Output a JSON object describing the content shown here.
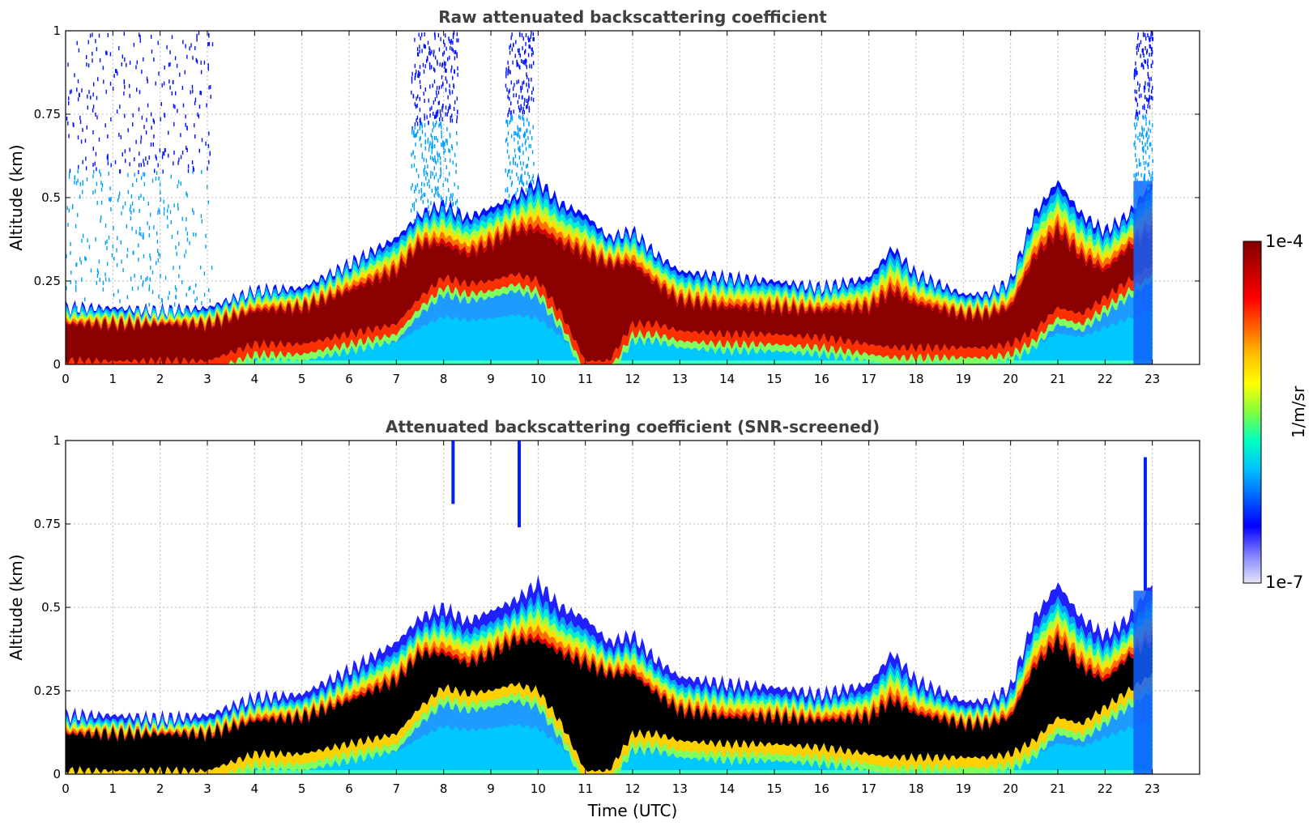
{
  "chart_data": [
    {
      "type": "heatmap",
      "title": "Raw attenuated backscattering coefficient",
      "xlabel": "",
      "ylabel": "Altitude (km)",
      "xlim": [
        0,
        24
      ],
      "ylim": [
        0,
        1
      ],
      "xticks": [
        "0",
        "1",
        "2",
        "3",
        "4",
        "5",
        "6",
        "7",
        "8",
        "9",
        "10",
        "11",
        "12",
        "13",
        "14",
        "15",
        "16",
        "17",
        "18",
        "19",
        "20",
        "21",
        "22",
        "23"
      ],
      "yticks": [
        "0",
        "0.25",
        "0.5",
        "0.75",
        "1"
      ],
      "grid": true,
      "data_end_hour": 23,
      "layer": {
        "description_hours": [
          0,
          1,
          2,
          3,
          4,
          5,
          6,
          7,
          7.5,
          8,
          8.5,
          9,
          9.5,
          10,
          10.5,
          11,
          11.5,
          12,
          12.5,
          13,
          14,
          15,
          16,
          17,
          17.5,
          18,
          19,
          19.5,
          20,
          20.5,
          21,
          21.5,
          22,
          22.5,
          23
        ],
        "top_km": [
          0.17,
          0.17,
          0.16,
          0.17,
          0.22,
          0.23,
          0.3,
          0.38,
          0.45,
          0.48,
          0.44,
          0.47,
          0.5,
          0.55,
          0.48,
          0.45,
          0.38,
          0.4,
          0.33,
          0.28,
          0.26,
          0.25,
          0.23,
          0.26,
          0.35,
          0.27,
          0.21,
          0.21,
          0.25,
          0.45,
          0.55,
          0.45,
          0.4,
          0.45,
          0.55
        ],
        "core_low_km": [
          0.01,
          0.01,
          0.01,
          0.01,
          0.06,
          0.06,
          0.09,
          0.12,
          0.2,
          0.26,
          0.24,
          0.25,
          0.27,
          0.25,
          0.15,
          0.01,
          0.01,
          0.12,
          0.12,
          0.1,
          0.09,
          0.09,
          0.08,
          0.06,
          0.05,
          0.05,
          0.05,
          0.05,
          0.06,
          0.1,
          0.17,
          0.15,
          0.2,
          0.25,
          0.3
        ],
        "core_high_km": [
          0.12,
          0.12,
          0.12,
          0.12,
          0.16,
          0.17,
          0.22,
          0.28,
          0.36,
          0.36,
          0.33,
          0.36,
          0.4,
          0.4,
          0.36,
          0.33,
          0.3,
          0.3,
          0.24,
          0.19,
          0.17,
          0.17,
          0.16,
          0.17,
          0.22,
          0.18,
          0.15,
          0.15,
          0.17,
          0.32,
          0.4,
          0.32,
          0.28,
          0.35,
          0.4
        ]
      }
    },
    {
      "type": "heatmap",
      "title": "Attenuated backscattering coefficient (SNR-screened)",
      "xlabel": "Time (UTC)",
      "ylabel": "Altitude (km)",
      "xlim": [
        0,
        24
      ],
      "ylim": [
        0,
        1
      ],
      "xticks": [
        "0",
        "1",
        "2",
        "3",
        "4",
        "5",
        "6",
        "7",
        "8",
        "9",
        "10",
        "11",
        "12",
        "13",
        "14",
        "15",
        "16",
        "17",
        "18",
        "19",
        "20",
        "21",
        "22",
        "23"
      ],
      "yticks": [
        "0",
        "0.25",
        "0.5",
        "0.75",
        "1"
      ],
      "grid": true,
      "data_end_hour": 23
    }
  ],
  "colorbar": {
    "label": "1/m/sr",
    "max_label": "1e-4",
    "min_label": "1e-7",
    "scale": "log",
    "colormap": [
      "#e6e6fa",
      "#8080ff",
      "#0000ff",
      "#0060ff",
      "#00c0ff",
      "#00ffc0",
      "#80ff40",
      "#ffff00",
      "#ffc000",
      "#ff6000",
      "#ff0000",
      "#c00000",
      "#800000"
    ]
  }
}
